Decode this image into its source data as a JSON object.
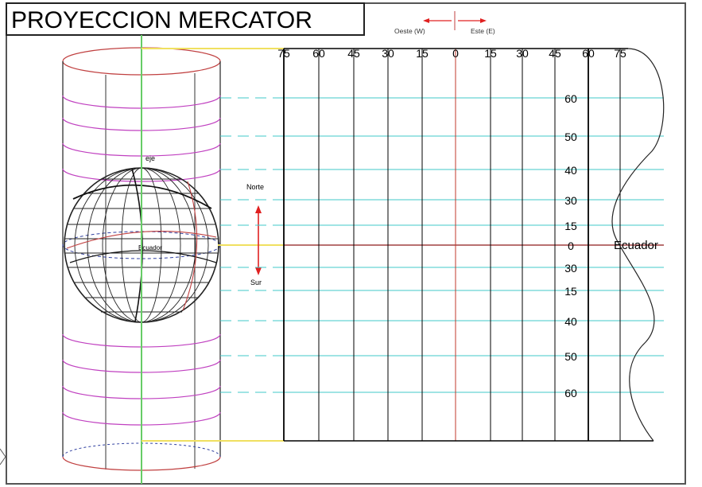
{
  "title": "PROYECCION  MERCATOR",
  "compass": {
    "west": "Oeste (W)",
    "east": "Este (E)"
  },
  "north_south": {
    "north": "Norte",
    "south": "Sur"
  },
  "globe_labels": {
    "axis": "eje",
    "center": "Ecuador"
  },
  "longitudes": [
    "75",
    "60",
    "45",
    "30",
    "15",
    "0",
    "15",
    "30",
    "45",
    "60",
    "75"
  ],
  "latitudes": [
    "60",
    "50",
    "40",
    "30",
    "15",
    "0",
    "30",
    "15",
    "40",
    "50",
    "60"
  ],
  "equator_label": "Ecuador",
  "colors": {
    "frame": "#555555",
    "grid": "#000000",
    "latitude": "#40c8c8",
    "meridian_zero": "#c0392b",
    "equator": "#a04040",
    "green_axis": "#66cc66",
    "yellow": "#f0e060",
    "magenta": "#c040c0",
    "cylinder": "#c04040",
    "dashed_blue": "#3040a0",
    "red_arrow": "#e02020"
  }
}
